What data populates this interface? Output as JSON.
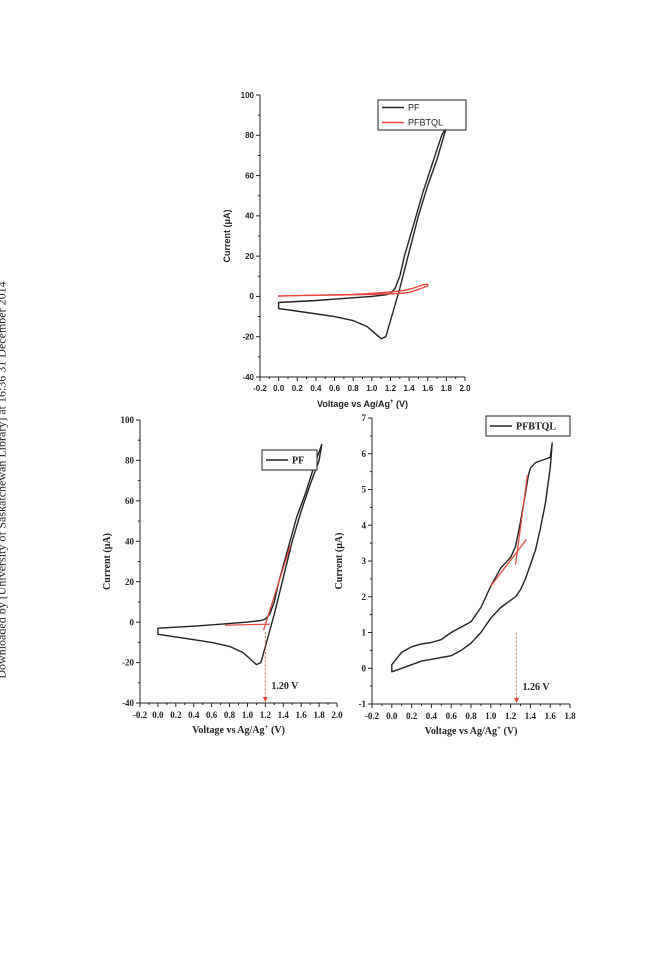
{
  "page": {
    "side_note": "Downloaded by [University of Saskatchewan Library] at 16:36 31 December 2014"
  },
  "chart_data": [
    {
      "type": "line",
      "panel": "top",
      "xlabel": "Voltage vs Ag/Ag",
      "xlabel_sup": "+",
      "xlabel_unit": " (V)",
      "ylabel": "Current (μA)",
      "xlim": [
        -0.2,
        2.0
      ],
      "ylim": [
        -40,
        100
      ],
      "xticks": [
        -0.2,
        0.0,
        0.2,
        0.4,
        0.6,
        0.8,
        1.0,
        1.2,
        1.4,
        1.6,
        1.8,
        2.0
      ],
      "yticks": [
        -40,
        -20,
        0,
        20,
        40,
        60,
        80,
        100
      ],
      "grid": false,
      "legend": "top-right",
      "series": [
        {
          "name": "PF",
          "color": "#222222",
          "x": [
            0.0,
            0.3,
            0.6,
            0.8,
            0.95,
            1.05,
            1.1,
            1.15,
            1.2,
            1.3,
            1.4,
            1.5,
            1.6,
            1.7,
            1.8,
            1.75,
            1.65,
            1.55,
            1.45,
            1.35,
            1.3,
            1.25,
            1.2,
            1.15,
            1.0,
            0.7,
            0.4,
            0.0
          ],
          "y": [
            -6,
            -8,
            -10,
            -12,
            -15,
            -19,
            -21,
            -20,
            -12,
            4,
            22,
            40,
            55,
            68,
            84,
            80,
            66,
            52,
            36,
            20,
            10,
            4,
            1.5,
            0.8,
            0,
            -1,
            -2,
            -3
          ]
        },
        {
          "name": "PFBTQL",
          "color": "#e8443a",
          "x": [
            0.0,
            0.4,
            0.8,
            1.0,
            1.2,
            1.35,
            1.45,
            1.55,
            1.6,
            1.6,
            1.5,
            1.4,
            1.3,
            1.2,
            1.0,
            0.6,
            0.2,
            0.0
          ],
          "y": [
            0.2,
            0.6,
            1.0,
            1.5,
            2.2,
            3.0,
            4.2,
            5.8,
            6.0,
            5.2,
            3.5,
            2.0,
            1.5,
            1.3,
            1.0,
            0.7,
            0.4,
            0.2
          ]
        }
      ]
    },
    {
      "type": "line",
      "panel": "bottom-left",
      "xlabel": "Voltage vs Ag/Ag",
      "xlabel_sup": "+",
      "xlabel_unit": " (V)",
      "ylabel": "Current (μA)",
      "xlim": [
        -0.2,
        2.0
      ],
      "ylim": [
        -40,
        100
      ],
      "xticks": [
        -0.2,
        0.0,
        0.2,
        0.4,
        0.6,
        0.8,
        1.0,
        1.2,
        1.4,
        1.6,
        1.8,
        2.0
      ],
      "yticks": [
        -40,
        -20,
        0,
        20,
        40,
        60,
        80,
        100
      ],
      "grid": false,
      "legend": "top-right",
      "annotation": "1.20 V",
      "annotation_x": 1.2,
      "series": [
        {
          "name": "PF",
          "color": "#222222",
          "x": [
            0.0,
            0.3,
            0.6,
            0.8,
            0.95,
            1.05,
            1.1,
            1.15,
            1.2,
            1.3,
            1.4,
            1.5,
            1.6,
            1.7,
            1.8,
            1.83,
            1.75,
            1.65,
            1.55,
            1.45,
            1.35,
            1.3,
            1.25,
            1.2,
            1.15,
            1.0,
            0.7,
            0.4,
            0.0
          ],
          "y": [
            -6,
            -8,
            -10,
            -12,
            -15,
            -19,
            -21,
            -20,
            -12,
            4,
            22,
            40,
            55,
            68,
            80,
            88,
            78,
            64,
            52,
            36,
            20,
            10,
            4,
            1.5,
            0.8,
            0,
            -1,
            -2,
            -3
          ]
        }
      ],
      "tangents": [
        {
          "x": [
            0.75,
            1.25
          ],
          "y": [
            -1.5,
            -1.0
          ]
        },
        {
          "x": [
            1.18,
            1.48
          ],
          "y": [
            -4,
            38
          ]
        }
      ]
    },
    {
      "type": "line",
      "panel": "bottom-right",
      "xlabel": "Voltage vs Ag/Ag",
      "xlabel_sup": "+",
      "xlabel_unit": " (V)",
      "ylabel": "Current (μA)",
      "xlim": [
        -0.2,
        1.8
      ],
      "ylim": [
        -1,
        7
      ],
      "xticks": [
        -0.2,
        0.0,
        0.2,
        0.4,
        0.6,
        0.8,
        1.0,
        1.2,
        1.4,
        1.6,
        1.8
      ],
      "yticks": [
        -1,
        0,
        1,
        2,
        3,
        4,
        5,
        6,
        7
      ],
      "grid": false,
      "legend": "top-right",
      "annotation": "1.26 V",
      "annotation_x": 1.26,
      "series": [
        {
          "name": "PFBTQL",
          "color": "#222222",
          "x": [
            0.0,
            0.1,
            0.2,
            0.3,
            0.4,
            0.5,
            0.6,
            0.7,
            0.8,
            0.9,
            1.0,
            1.1,
            1.2,
            1.25,
            1.3,
            1.35,
            1.4,
            1.45,
            1.5,
            1.55,
            1.6,
            1.62,
            1.6,
            1.55,
            1.5,
            1.45,
            1.4,
            1.38,
            1.35,
            1.3,
            1.25,
            1.2,
            1.1,
            1.0,
            0.9,
            0.8,
            0.7,
            0.6,
            0.5,
            0.4,
            0.3,
            0.2,
            0.1,
            0.0
          ],
          "y": [
            -0.1,
            0.0,
            0.1,
            0.2,
            0.25,
            0.3,
            0.35,
            0.5,
            0.7,
            1.0,
            1.4,
            1.7,
            1.9,
            2.0,
            2.2,
            2.5,
            2.9,
            3.3,
            3.9,
            4.6,
            5.6,
            6.3,
            5.9,
            5.85,
            5.8,
            5.75,
            5.6,
            5.4,
            4.9,
            4.1,
            3.4,
            3.1,
            2.8,
            2.3,
            1.7,
            1.3,
            1.15,
            1.0,
            0.8,
            0.72,
            0.68,
            0.6,
            0.45,
            0.1
          ]
        }
      ],
      "tangents": [
        {
          "x": [
            1.0,
            1.36
          ],
          "y": [
            2.3,
            3.6
          ]
        },
        {
          "x": [
            1.25,
            1.37
          ],
          "y": [
            2.9,
            5.4
          ]
        }
      ]
    }
  ]
}
